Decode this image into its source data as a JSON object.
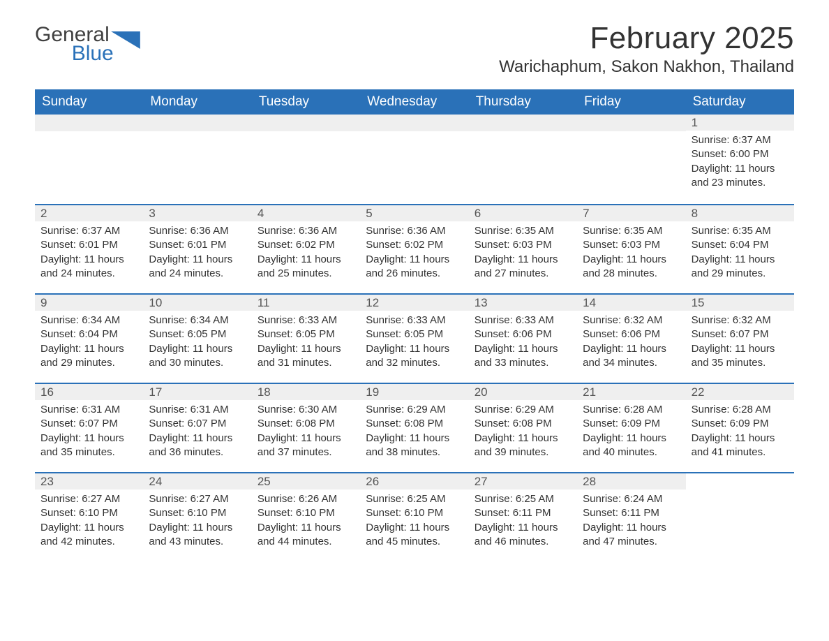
{
  "brand": {
    "word1": "General",
    "word2": "Blue",
    "text_color": "#404040",
    "accent_color": "#2a71b8"
  },
  "title": "February 2025",
  "location": "Warichaphum, Sakon Nakhon, Thailand",
  "colors": {
    "header_bg": "#2a71b8",
    "header_text": "#ffffff",
    "daynum_bg": "#efefef",
    "body_text": "#333333",
    "rule": "#2a71b8",
    "page_bg": "#ffffff"
  },
  "typography": {
    "title_fontsize": 44,
    "location_fontsize": 24,
    "weekday_fontsize": 19,
    "daynum_fontsize": 17,
    "body_fontsize": 15
  },
  "layout": {
    "columns": 7,
    "rows": 5,
    "first_day_column_index": 6
  },
  "weekdays": [
    "Sunday",
    "Monday",
    "Tuesday",
    "Wednesday",
    "Thursday",
    "Friday",
    "Saturday"
  ],
  "days": [
    {
      "n": 1,
      "sunrise": "6:37 AM",
      "sunset": "6:00 PM",
      "daylight": "11 hours and 23 minutes."
    },
    {
      "n": 2,
      "sunrise": "6:37 AM",
      "sunset": "6:01 PM",
      "daylight": "11 hours and 24 minutes."
    },
    {
      "n": 3,
      "sunrise": "6:36 AM",
      "sunset": "6:01 PM",
      "daylight": "11 hours and 24 minutes."
    },
    {
      "n": 4,
      "sunrise": "6:36 AM",
      "sunset": "6:02 PM",
      "daylight": "11 hours and 25 minutes."
    },
    {
      "n": 5,
      "sunrise": "6:36 AM",
      "sunset": "6:02 PM",
      "daylight": "11 hours and 26 minutes."
    },
    {
      "n": 6,
      "sunrise": "6:35 AM",
      "sunset": "6:03 PM",
      "daylight": "11 hours and 27 minutes."
    },
    {
      "n": 7,
      "sunrise": "6:35 AM",
      "sunset": "6:03 PM",
      "daylight": "11 hours and 28 minutes."
    },
    {
      "n": 8,
      "sunrise": "6:35 AM",
      "sunset": "6:04 PM",
      "daylight": "11 hours and 29 minutes."
    },
    {
      "n": 9,
      "sunrise": "6:34 AM",
      "sunset": "6:04 PM",
      "daylight": "11 hours and 29 minutes."
    },
    {
      "n": 10,
      "sunrise": "6:34 AM",
      "sunset": "6:05 PM",
      "daylight": "11 hours and 30 minutes."
    },
    {
      "n": 11,
      "sunrise": "6:33 AM",
      "sunset": "6:05 PM",
      "daylight": "11 hours and 31 minutes."
    },
    {
      "n": 12,
      "sunrise": "6:33 AM",
      "sunset": "6:05 PM",
      "daylight": "11 hours and 32 minutes."
    },
    {
      "n": 13,
      "sunrise": "6:33 AM",
      "sunset": "6:06 PM",
      "daylight": "11 hours and 33 minutes."
    },
    {
      "n": 14,
      "sunrise": "6:32 AM",
      "sunset": "6:06 PM",
      "daylight": "11 hours and 34 minutes."
    },
    {
      "n": 15,
      "sunrise": "6:32 AM",
      "sunset": "6:07 PM",
      "daylight": "11 hours and 35 minutes."
    },
    {
      "n": 16,
      "sunrise": "6:31 AM",
      "sunset": "6:07 PM",
      "daylight": "11 hours and 35 minutes."
    },
    {
      "n": 17,
      "sunrise": "6:31 AM",
      "sunset": "6:07 PM",
      "daylight": "11 hours and 36 minutes."
    },
    {
      "n": 18,
      "sunrise": "6:30 AM",
      "sunset": "6:08 PM",
      "daylight": "11 hours and 37 minutes."
    },
    {
      "n": 19,
      "sunrise": "6:29 AM",
      "sunset": "6:08 PM",
      "daylight": "11 hours and 38 minutes."
    },
    {
      "n": 20,
      "sunrise": "6:29 AM",
      "sunset": "6:08 PM",
      "daylight": "11 hours and 39 minutes."
    },
    {
      "n": 21,
      "sunrise": "6:28 AM",
      "sunset": "6:09 PM",
      "daylight": "11 hours and 40 minutes."
    },
    {
      "n": 22,
      "sunrise": "6:28 AM",
      "sunset": "6:09 PM",
      "daylight": "11 hours and 41 minutes."
    },
    {
      "n": 23,
      "sunrise": "6:27 AM",
      "sunset": "6:10 PM",
      "daylight": "11 hours and 42 minutes."
    },
    {
      "n": 24,
      "sunrise": "6:27 AM",
      "sunset": "6:10 PM",
      "daylight": "11 hours and 43 minutes."
    },
    {
      "n": 25,
      "sunrise": "6:26 AM",
      "sunset": "6:10 PM",
      "daylight": "11 hours and 44 minutes."
    },
    {
      "n": 26,
      "sunrise": "6:25 AM",
      "sunset": "6:10 PM",
      "daylight": "11 hours and 45 minutes."
    },
    {
      "n": 27,
      "sunrise": "6:25 AM",
      "sunset": "6:11 PM",
      "daylight": "11 hours and 46 minutes."
    },
    {
      "n": 28,
      "sunrise": "6:24 AM",
      "sunset": "6:11 PM",
      "daylight": "11 hours and 47 minutes."
    }
  ],
  "labels": {
    "sunrise": "Sunrise:",
    "sunset": "Sunset:",
    "daylight": "Daylight:"
  }
}
